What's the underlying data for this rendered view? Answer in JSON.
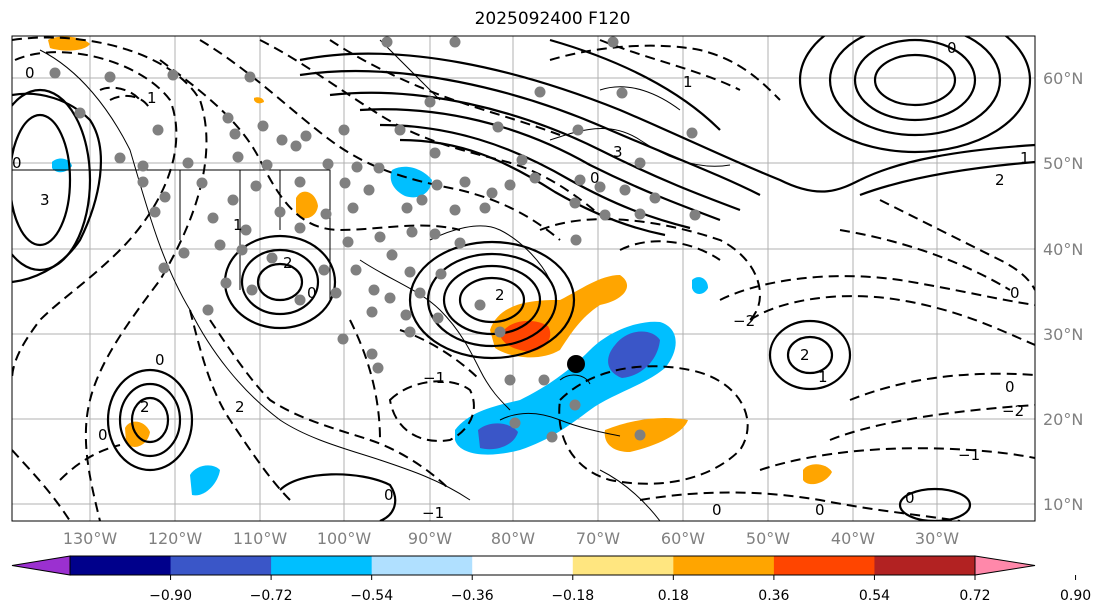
{
  "title": "2025092400 F120",
  "lat_labels": [
    "60°N",
    "50°N",
    "40°N",
    "30°N",
    "20°N",
    "10°N"
  ],
  "lon_labels": [
    "130°W",
    "120°W",
    "110°W",
    "100°W",
    "90°W",
    "80°W",
    "70°W",
    "60°W",
    "50°W",
    "40°W",
    "30°W"
  ],
  "colorbar": {
    "ticks": [
      "−0.90",
      "−0.72",
      "−0.54",
      "−0.36",
      "−0.18",
      "0.18",
      "0.36",
      "0.54",
      "0.72",
      "0.90"
    ],
    "colors": [
      "#9b30d0",
      "#00008b",
      "#3a56c8",
      "#00bfff",
      "#b0e0ff",
      "#ffffff",
      "#ffe680",
      "#ffa500",
      "#ff4500",
      "#b22222",
      "#ff88aa"
    ]
  },
  "contour_labels": [
    "0",
    "1",
    "2",
    "3",
    "−1",
    "−2"
  ]
}
